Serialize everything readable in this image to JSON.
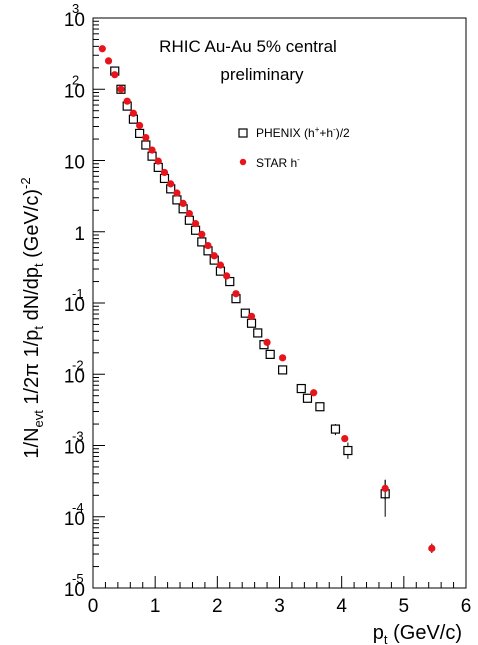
{
  "chart_data": {
    "type": "scatter",
    "title": [
      "RHIC Au-Au 5% central",
      "preliminary"
    ],
    "xlabel": {
      "base": "p",
      "sub": "t",
      "rest": " (GeV/c)"
    },
    "ylabel": {
      "parts": [
        {
          "t": "1/N"
        },
        {
          "t": "evt",
          "s": "sub"
        },
        {
          "t": " 1/2π 1/p"
        },
        {
          "t": "t",
          "s": "sub"
        },
        {
          "t": " dN/dp"
        },
        {
          "t": "t",
          "s": "sub"
        },
        {
          "t": " (GeV/c)"
        },
        {
          "t": "-2",
          "s": "sup"
        }
      ]
    },
    "x_axis": {
      "min": 0,
      "max": 6,
      "ticks": [
        "0",
        "1",
        "2",
        "3",
        "4",
        "5",
        "6"
      ]
    },
    "y_axis": {
      "scale": "log",
      "min": 1e-05,
      "max": 1000,
      "ticks": [
        {
          "value": 1000,
          "base": "10",
          "exp": "3"
        },
        {
          "value": 100,
          "base": "10",
          "exp": "2"
        },
        {
          "value": 10,
          "base": "10",
          "exp": ""
        },
        {
          "value": 1,
          "base": "1",
          "exp": ""
        },
        {
          "value": 0.1,
          "base": "10",
          "exp": "-1"
        },
        {
          "value": 0.01,
          "base": "10",
          "exp": "-2"
        },
        {
          "value": 0.001,
          "base": "10",
          "exp": "-3"
        },
        {
          "value": 0.0001,
          "base": "10",
          "exp": "-4"
        },
        {
          "value": 1e-05,
          "base": "10",
          "exp": "-5"
        }
      ]
    },
    "grid": false,
    "legend": {
      "position": "top-right",
      "entries": [
        {
          "marker": "open-square",
          "label": "PHENIX (h",
          "sup1": "+",
          "mid": "+h",
          "sup2": "-",
          "end": ")/2"
        },
        {
          "marker": "filled-circle",
          "label": "STAR h",
          "sup1": "-",
          "mid": "",
          "sup2": "",
          "end": ""
        }
      ]
    },
    "series": [
      {
        "name": "PHENIX (h+ + h-)/2",
        "marker": "open-square",
        "color": "#000000",
        "x": [
          0.35,
          0.45,
          0.55,
          0.65,
          0.75,
          0.85,
          0.95,
          1.05,
          1.15,
          1.25,
          1.35,
          1.45,
          1.55,
          1.65,
          1.75,
          1.85,
          1.95,
          2.05,
          2.2,
          2.3,
          2.45,
          2.55,
          2.65,
          2.75,
          2.85,
          3.05,
          3.35,
          3.45,
          3.65,
          3.9,
          4.1,
          4.7
        ],
        "y": [
          180,
          100,
          58,
          38,
          24,
          16.5,
          11.5,
          8,
          5.6,
          4,
          2.8,
          2.1,
          1.45,
          1.05,
          0.72,
          0.54,
          0.4,
          0.28,
          0.2,
          0.115,
          0.072,
          0.052,
          0.038,
          0.026,
          0.019,
          0.0115,
          0.0063,
          0.0046,
          0.0035,
          0.0017,
          0.00085,
          0.00021
        ],
        "err_low": [
          180,
          100,
          58,
          38,
          24,
          16.5,
          11.5,
          8,
          5.6,
          4,
          2.8,
          2.1,
          1.45,
          1.05,
          0.72,
          0.54,
          0.4,
          0.28,
          0.2,
          0.115,
          0.072,
          0.052,
          0.038,
          0.026,
          0.019,
          0.0115,
          0.0063,
          0.0046,
          0.0035,
          0.0014,
          0.00065,
          0.0001
        ],
        "err_high": [
          180,
          100,
          58,
          38,
          24,
          16.5,
          11.5,
          8,
          5.6,
          4,
          2.8,
          2.1,
          1.45,
          1.05,
          0.72,
          0.54,
          0.4,
          0.28,
          0.2,
          0.115,
          0.072,
          0.052,
          0.038,
          0.026,
          0.019,
          0.0115,
          0.0063,
          0.0046,
          0.0035,
          0.002,
          0.0011,
          0.00033
        ]
      },
      {
        "name": "STAR h-",
        "marker": "filled-circle",
        "color": "#e8141b",
        "x": [
          0.15,
          0.25,
          0.35,
          0.45,
          0.55,
          0.65,
          0.75,
          0.85,
          0.95,
          1.05,
          1.15,
          1.25,
          1.35,
          1.45,
          1.55,
          1.65,
          1.75,
          1.85,
          1.95,
          2.05,
          2.15,
          2.3,
          2.55,
          2.8,
          3.05,
          3.55,
          4.05,
          4.7,
          5.45
        ],
        "y": [
          370,
          250,
          160,
          100,
          68,
          46,
          31,
          21,
          14,
          9.8,
          6.8,
          4.7,
          3.5,
          2.5,
          1.8,
          1.3,
          0.92,
          0.64,
          0.46,
          0.34,
          0.24,
          0.135,
          0.065,
          0.028,
          0.017,
          0.0055,
          0.00125,
          0.00025,
          3.6e-05
        ],
        "err_low": [
          370,
          250,
          160,
          100,
          68,
          46,
          31,
          21,
          14,
          9.8,
          6.8,
          4.7,
          3.5,
          2.5,
          1.8,
          1.3,
          0.92,
          0.64,
          0.46,
          0.34,
          0.24,
          0.135,
          0.065,
          0.028,
          0.017,
          0.0055,
          0.00125,
          0.000175,
          3.1e-05
        ],
        "err_high": [
          370,
          250,
          160,
          100,
          68,
          46,
          31,
          21,
          14,
          9.8,
          6.8,
          4.7,
          3.5,
          2.5,
          1.8,
          1.3,
          0.92,
          0.64,
          0.46,
          0.34,
          0.24,
          0.135,
          0.065,
          0.028,
          0.017,
          0.0055,
          0.00125,
          0.00033,
          4.2e-05
        ]
      }
    ]
  }
}
